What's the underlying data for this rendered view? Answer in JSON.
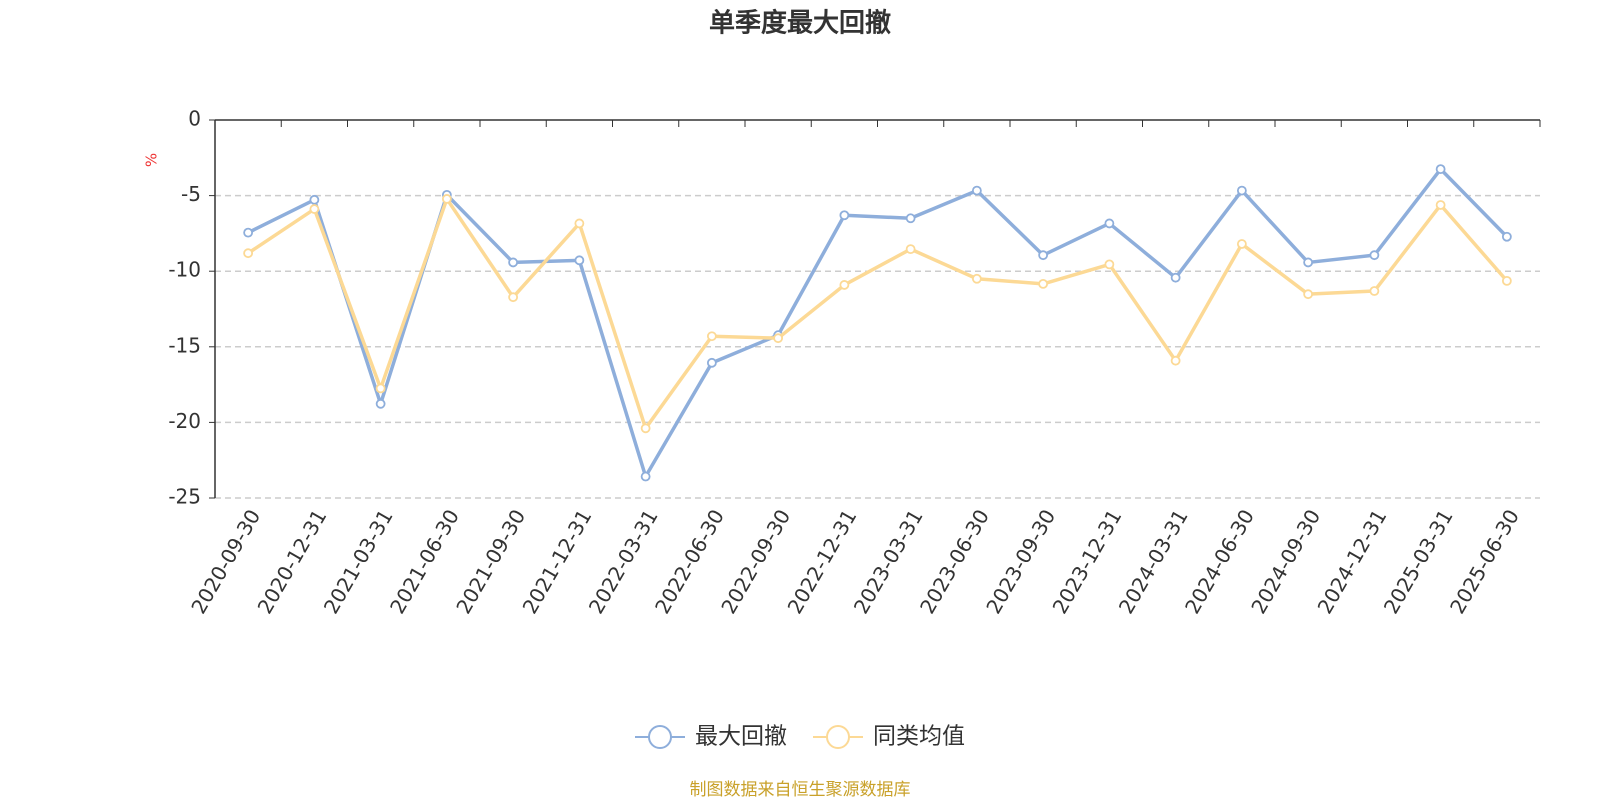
{
  "chart_data": {
    "type": "line",
    "title": "单季度最大回撤",
    "y_label": "%",
    "source": "制图数据来自恒生聚源数据库",
    "categories": [
      "2020-09-30",
      "2020-12-31",
      "2021-03-31",
      "2021-06-30",
      "2021-09-30",
      "2021-12-31",
      "2022-03-31",
      "2022-06-30",
      "2022-09-30",
      "2022-12-31",
      "2023-03-31",
      "2023-06-30",
      "2023-09-30",
      "2023-12-31",
      "2024-03-31",
      "2024-06-30",
      "2024-09-30",
      "2024-12-31",
      "2025-03-31",
      "2025-06-30"
    ],
    "series": [
      {
        "name": "最大回撤",
        "color": "#8eaedb",
        "values": [
          -7.45,
          -5.28,
          -18.77,
          -4.95,
          -9.42,
          -9.28,
          -23.58,
          -16.06,
          -14.23,
          -6.3,
          -6.5,
          -4.67,
          -8.94,
          -6.84,
          -10.43,
          -4.67,
          -9.42,
          -8.94,
          -3.25,
          -7.72
        ]
      },
      {
        "name": "同类均值",
        "color": "#fcd995",
        "values": [
          -8.81,
          -5.89,
          -17.75,
          -5.22,
          -11.72,
          -6.84,
          -20.39,
          -14.3,
          -14.43,
          -10.91,
          -8.54,
          -10.5,
          -10.84,
          -9.55,
          -15.92,
          -8.2,
          -11.52,
          -11.31,
          -5.62,
          -10.64
        ]
      }
    ],
    "ylim": [
      -25,
      0
    ],
    "yticks": [
      0,
      -5,
      -10,
      -15,
      -20,
      -25
    ],
    "grid": true
  }
}
